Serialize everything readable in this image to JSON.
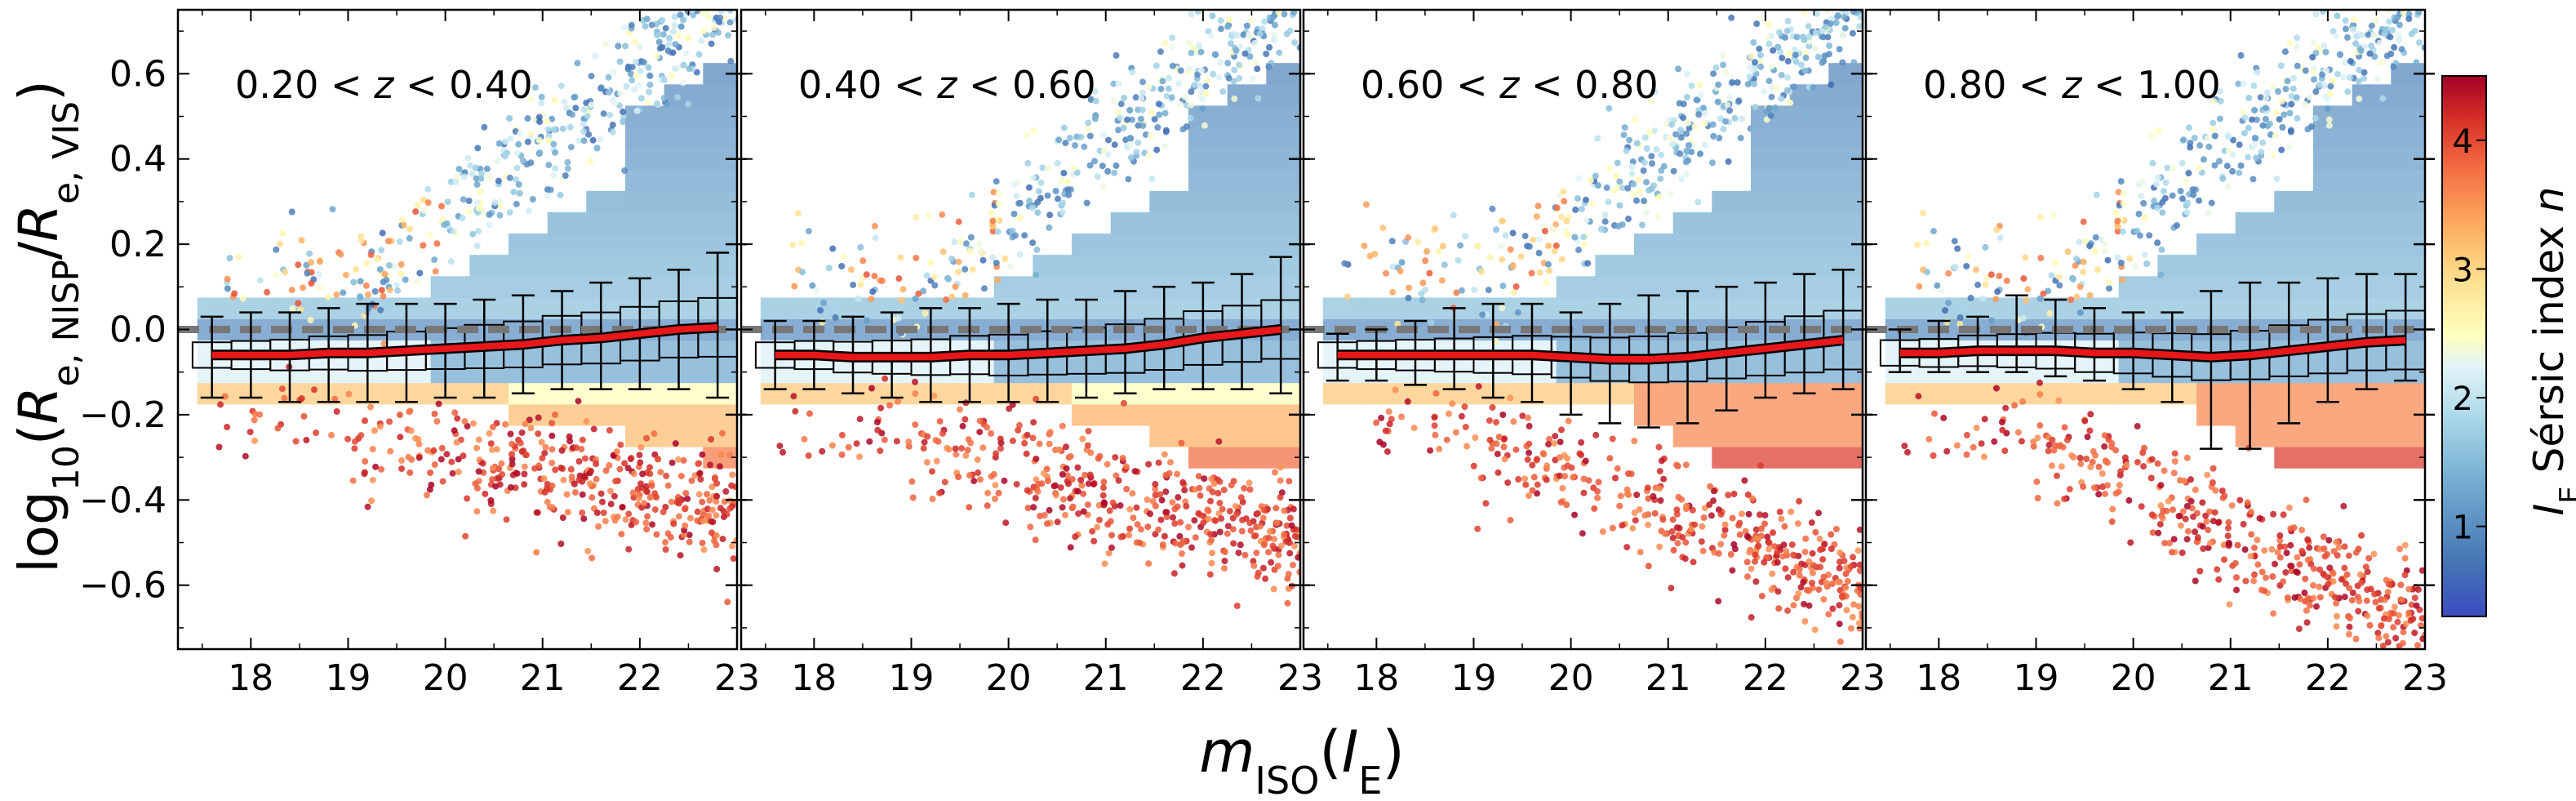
{
  "figure": {
    "ylabel": "log10(Re, NISP/Re, VIS)",
    "xlabel": "mISO(IE)"
  },
  "colorbar": {
    "label": "IE Sérsic index n",
    "ticks": [
      "1",
      "2",
      "3",
      "4"
    ],
    "range": [
      0.3,
      4.5
    ],
    "colormap": [
      "#3b4cc0",
      "#4575b4",
      "#74add1",
      "#abd9e9",
      "#e0f3f8",
      "#ffffbf",
      "#fee090",
      "#fdae61",
      "#f46d43",
      "#d73027",
      "#a50026"
    ]
  },
  "chart_data": [
    {
      "type": "scatter",
      "panel_label": "0.20 < z < 0.40",
      "xlim": [
        17.25,
        23.0
      ],
      "ylim": [
        -0.75,
        0.75
      ],
      "xticks": [
        18,
        19,
        20,
        21,
        22,
        23
      ],
      "yticks": [
        "0.6",
        "0.4",
        "0.2",
        "0.0",
        "−0.2",
        "−0.4",
        "−0.6"
      ],
      "reference_line_y": 0.0,
      "median_x": [
        17.6,
        18.0,
        18.4,
        18.8,
        19.2,
        19.6,
        20.0,
        20.4,
        20.8,
        21.2,
        21.6,
        22.0,
        22.4,
        22.8
      ],
      "median_y": [
        -0.06,
        -0.06,
        -0.06,
        -0.055,
        -0.055,
        -0.05,
        -0.045,
        -0.04,
        -0.035,
        -0.025,
        -0.02,
        -0.01,
        0.0,
        0.005
      ],
      "err_low": [
        -0.16,
        -0.16,
        -0.17,
        -0.17,
        -0.17,
        -0.17,
        -0.16,
        -0.16,
        -0.15,
        -0.14,
        -0.14,
        -0.14,
        -0.14,
        -0.16
      ],
      "err_high": [
        0.03,
        0.04,
        0.04,
        0.05,
        0.06,
        0.06,
        0.06,
        0.07,
        0.08,
        0.09,
        0.11,
        0.12,
        0.14,
        0.18
      ]
    },
    {
      "type": "scatter",
      "panel_label": "0.40 < z < 0.60",
      "xlim": [
        17.25,
        23.0
      ],
      "ylim": [
        -0.75,
        0.75
      ],
      "xticks": [
        18,
        19,
        20,
        21,
        22,
        23
      ],
      "reference_line_y": 0.0,
      "median_x": [
        17.6,
        18.0,
        18.4,
        18.8,
        19.2,
        19.6,
        20.0,
        20.4,
        20.8,
        21.2,
        21.6,
        22.0,
        22.4,
        22.8
      ],
      "median_y": [
        -0.06,
        -0.06,
        -0.065,
        -0.065,
        -0.065,
        -0.06,
        -0.06,
        -0.055,
        -0.05,
        -0.045,
        -0.035,
        -0.02,
        -0.01,
        0.0
      ],
      "err_low": [
        -0.14,
        -0.14,
        -0.15,
        -0.16,
        -0.17,
        -0.17,
        -0.17,
        -0.17,
        -0.16,
        -0.15,
        -0.14,
        -0.14,
        -0.14,
        -0.15
      ],
      "err_high": [
        0.02,
        0.02,
        0.03,
        0.04,
        0.05,
        0.05,
        0.06,
        0.07,
        0.07,
        0.09,
        0.1,
        0.11,
        0.13,
        0.17
      ]
    },
    {
      "type": "scatter",
      "panel_label": "0.60 < z < 0.80",
      "xlim": [
        17.25,
        23.0
      ],
      "ylim": [
        -0.75,
        0.75
      ],
      "xticks": [
        18,
        19,
        20,
        21,
        22,
        23
      ],
      "reference_line_y": 0.0,
      "median_x": [
        17.6,
        18.0,
        18.4,
        18.8,
        19.2,
        19.6,
        20.0,
        20.4,
        20.8,
        21.2,
        21.6,
        22.0,
        22.4,
        22.8
      ],
      "median_y": [
        -0.06,
        -0.06,
        -0.06,
        -0.06,
        -0.06,
        -0.06,
        -0.065,
        -0.07,
        -0.07,
        -0.065,
        -0.055,
        -0.045,
        -0.035,
        -0.025
      ],
      "err_low": [
        -0.12,
        -0.12,
        -0.13,
        -0.14,
        -0.16,
        -0.17,
        -0.2,
        -0.22,
        -0.23,
        -0.22,
        -0.19,
        -0.16,
        -0.15,
        -0.14
      ],
      "err_high": [
        -0.01,
        0.0,
        0.02,
        0.05,
        0.06,
        0.06,
        0.04,
        0.06,
        0.08,
        0.09,
        0.1,
        0.11,
        0.13,
        0.14
      ]
    },
    {
      "type": "scatter",
      "panel_label": "0.80 < z < 1.00",
      "xlim": [
        17.25,
        23.0
      ],
      "ylim": [
        -0.75,
        0.75
      ],
      "xticks": [
        18,
        19,
        20,
        21,
        22,
        23
      ],
      "reference_line_y": 0.0,
      "median_x": [
        17.6,
        18.0,
        18.4,
        18.8,
        19.2,
        19.6,
        20.0,
        20.4,
        20.8,
        21.2,
        21.6,
        22.0,
        22.4,
        22.8
      ],
      "median_y": [
        -0.055,
        -0.055,
        -0.05,
        -0.05,
        -0.05,
        -0.055,
        -0.055,
        -0.06,
        -0.065,
        -0.06,
        -0.05,
        -0.04,
        -0.03,
        -0.025
      ],
      "err_low": [
        -0.1,
        -0.1,
        -0.1,
        -0.1,
        -0.11,
        -0.12,
        -0.14,
        -0.17,
        -0.28,
        -0.28,
        -0.22,
        -0.17,
        -0.14,
        -0.12
      ],
      "err_high": [
        0.0,
        0.02,
        0.03,
        0.08,
        0.07,
        0.05,
        0.04,
        0.04,
        0.09,
        0.11,
        0.11,
        0.12,
        0.13,
        0.13
      ]
    }
  ]
}
